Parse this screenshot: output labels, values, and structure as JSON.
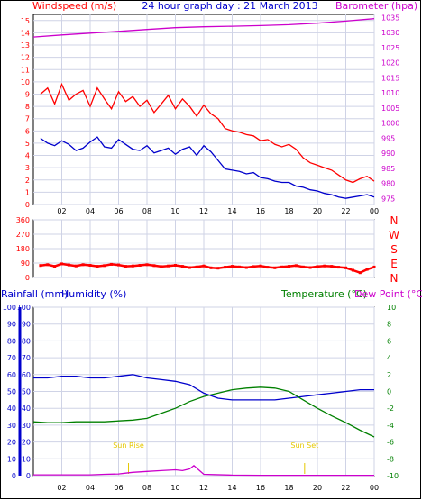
{
  "colors": {
    "wind": "#ff0000",
    "gust": "#ff0000",
    "avg_wind": "#0000cc",
    "barometer": "#cc00cc",
    "direction": "#ff0000",
    "rainfall": "#0000cc",
    "humidity": "#0000cc",
    "temperature": "#008000",
    "dew_point": "#cc00cc",
    "rain_axis": "#0000cc",
    "humidity_axis": "#0000cc",
    "temp_axis": "#008000",
    "sun": "#e6c800",
    "grid": "#cfd3e6",
    "axis_text": "#000000"
  },
  "chart_data": [
    {
      "type": "line",
      "title": "24 hour graph day : 21 March 2013",
      "left_label": "Windspeed (m/s)",
      "right_label": "Barometer (hpa)",
      "x_ticks": [
        "02",
        "04",
        "06",
        "08",
        "10",
        "12",
        "14",
        "16",
        "18",
        "20",
        "22",
        "00"
      ],
      "y_left_ticks": [
        "0",
        "1",
        "2",
        "3",
        "4",
        "5",
        "6",
        "7",
        "8",
        "9",
        "10",
        "11",
        "12",
        "13",
        "14",
        "15"
      ],
      "y_right_ticks": [
        "975",
        "980",
        "985",
        "990",
        "995",
        "1000",
        "1005",
        "1010",
        "1015",
        "1020",
        "1025",
        "1030",
        "1035"
      ],
      "ylim_left": [
        0,
        15.5
      ],
      "ylim_right": [
        973,
        1036
      ],
      "series": [
        {
          "role": "gust",
          "axis": "left",
          "x": [
            0.5,
            1.0,
            1.5,
            2.0,
            2.5,
            3.0,
            3.5,
            4.0,
            4.5,
            5.0,
            5.5,
            6.0,
            6.5,
            7.0,
            7.5,
            8.0,
            8.5,
            9.0,
            9.5,
            10.0,
            10.5,
            11.0,
            11.5,
            12.0,
            12.5,
            13.0,
            13.5,
            14.0,
            14.5,
            15.0,
            15.5,
            16.0,
            16.5,
            17.0,
            17.5,
            18.0,
            18.5,
            19.0,
            19.5,
            20.0,
            20.5,
            21.0,
            21.5,
            22.0,
            22.5,
            23.0,
            23.5,
            24.0
          ],
          "values": [
            9.0,
            9.5,
            8.2,
            9.8,
            8.5,
            9.0,
            9.3,
            8.0,
            9.5,
            8.6,
            7.8,
            9.2,
            8.4,
            8.8,
            8.0,
            8.5,
            7.5,
            8.2,
            8.9,
            7.8,
            8.6,
            8.0,
            7.2,
            8.1,
            7.4,
            7.0,
            6.2,
            6.0,
            5.9,
            5.7,
            5.6,
            5.2,
            5.3,
            4.9,
            4.7,
            4.9,
            4.5,
            3.8,
            3.4,
            3.2,
            3.0,
            2.8,
            2.4,
            2.0,
            1.8,
            2.1,
            2.3,
            1.9
          ]
        },
        {
          "role": "average",
          "axis": "left",
          "x": [
            0.5,
            1.0,
            1.5,
            2.0,
            2.5,
            3.0,
            3.5,
            4.0,
            4.5,
            5.0,
            5.5,
            6.0,
            6.5,
            7.0,
            7.5,
            8.0,
            8.5,
            9.0,
            9.5,
            10.0,
            10.5,
            11.0,
            11.5,
            12.0,
            12.5,
            13.0,
            13.5,
            14.0,
            14.5,
            15.0,
            15.5,
            16.0,
            16.5,
            17.0,
            17.5,
            18.0,
            18.5,
            19.0,
            19.5,
            20.0,
            20.5,
            21.0,
            21.5,
            22.0,
            22.5,
            23.0,
            23.5,
            24.0
          ],
          "values": [
            5.4,
            5.0,
            4.8,
            5.2,
            4.9,
            4.4,
            4.6,
            5.1,
            5.5,
            4.7,
            4.6,
            5.3,
            4.9,
            4.5,
            4.4,
            4.8,
            4.2,
            4.4,
            4.6,
            4.1,
            4.5,
            4.7,
            4.0,
            4.8,
            4.3,
            3.6,
            2.9,
            2.8,
            2.7,
            2.5,
            2.6,
            2.2,
            2.1,
            1.9,
            1.8,
            1.8,
            1.5,
            1.4,
            1.2,
            1.1,
            0.9,
            0.8,
            0.6,
            0.5,
            0.6,
            0.7,
            0.8,
            0.6
          ]
        },
        {
          "role": "barometer",
          "axis": "right",
          "x": [
            0,
            2,
            4,
            6,
            8,
            10,
            12,
            14,
            16,
            18,
            20,
            22,
            24
          ],
          "values": [
            1028.5,
            1029.2,
            1029.8,
            1030.4,
            1031.0,
            1031.6,
            1031.9,
            1032.1,
            1032.3,
            1032.6,
            1033.1,
            1033.8,
            1034.6
          ]
        }
      ]
    },
    {
      "type": "scatter",
      "right_label_letters": [
        "N",
        "W",
        "S",
        "E",
        "N"
      ],
      "y_ticks": [
        "360",
        "270",
        "180",
        "90",
        "0"
      ],
      "ylim": [
        0,
        360
      ],
      "x": [
        0.5,
        1.0,
        1.5,
        2.0,
        2.5,
        3.0,
        3.5,
        4.0,
        4.5,
        5.0,
        5.5,
        6.0,
        6.5,
        7.0,
        7.5,
        8.0,
        8.5,
        9.0,
        9.5,
        10.0,
        10.5,
        11.0,
        11.5,
        12.0,
        12.5,
        13.0,
        13.5,
        14.0,
        14.5,
        15.0,
        15.5,
        16.0,
        16.5,
        17.0,
        17.5,
        18.0,
        18.5,
        19.0,
        19.5,
        20.0,
        20.5,
        21.0,
        21.5,
        22.0,
        22.5,
        23.0,
        23.5,
        24.0
      ],
      "values": [
        75,
        80,
        70,
        85,
        78,
        72,
        80,
        76,
        70,
        74,
        82,
        78,
        70,
        72,
        76,
        80,
        74,
        68,
        72,
        76,
        70,
        62,
        66,
        72,
        60,
        58,
        64,
        70,
        66,
        62,
        68,
        72,
        64,
        60,
        66,
        70,
        74,
        66,
        62,
        68,
        72,
        70,
        64,
        60,
        45,
        30,
        50,
        65
      ]
    },
    {
      "type": "line",
      "left_labels": [
        "Rainfall (mm)",
        "Humidity (%)"
      ],
      "right_labels": [
        "Temperature (°C)",
        "Dew Point (°C)"
      ],
      "x_ticks": [
        "02",
        "04",
        "06",
        "08",
        "10",
        "12",
        "14",
        "16",
        "18",
        "20",
        "22",
        "00"
      ],
      "y_rain_ticks": [
        "0",
        "10",
        "20",
        "30",
        "40",
        "50",
        "60",
        "70",
        "80",
        "90",
        "100"
      ],
      "y_humidity_ticks": [
        "0",
        "10",
        "20",
        "30",
        "40",
        "50",
        "60",
        "70",
        "80",
        "90",
        "100"
      ],
      "y_temp_ticks": [
        "-10",
        "-8",
        "-6",
        "-4",
        "-2",
        "0",
        "2",
        "4",
        "6",
        "8",
        "10"
      ],
      "ylim_left": [
        0,
        100
      ],
      "ylim_right": [
        -10,
        10
      ],
      "annotations": [
        {
          "label": "Sun Rise",
          "x": 6.7
        },
        {
          "label": "Sun Set",
          "x": 19.1
        }
      ],
      "series": [
        {
          "role": "humidity",
          "axis": "left",
          "x": [
            0,
            1,
            2,
            3,
            4,
            5,
            6,
            7,
            8,
            9,
            10,
            11,
            12,
            13,
            14,
            15,
            16,
            17,
            18,
            19,
            20,
            21,
            22,
            23,
            24
          ],
          "values": [
            58,
            58,
            59,
            59,
            58,
            58,
            59,
            60,
            58,
            57,
            56,
            54,
            49,
            46,
            45,
            45,
            45,
            45,
            46,
            47,
            48,
            49,
            50,
            51,
            51
          ]
        },
        {
          "role": "temperature",
          "axis": "right",
          "x": [
            0,
            1,
            2,
            3,
            4,
            5,
            6,
            7,
            8,
            9,
            10,
            11,
            12,
            13,
            14,
            15,
            16,
            17,
            18,
            19,
            20,
            21,
            22,
            23,
            24
          ],
          "values": [
            -3.6,
            -3.7,
            -3.7,
            -3.6,
            -3.6,
            -3.6,
            -3.5,
            -3.4,
            -3.2,
            -2.6,
            -2.0,
            -1.2,
            -0.6,
            -0.2,
            0.2,
            0.4,
            0.5,
            0.4,
            0.0,
            -1.0,
            -2.0,
            -2.9,
            -3.7,
            -4.6,
            -5.4
          ]
        },
        {
          "role": "rainfall",
          "axis": "left",
          "x": [
            0,
            2,
            4,
            5,
            6,
            6.5,
            7,
            8,
            9,
            10,
            10.5,
            11,
            11.3,
            11.7,
            12,
            14,
            16,
            18,
            20,
            22,
            24
          ],
          "values": [
            0.5,
            0.5,
            0.5,
            0.8,
            1.0,
            1.5,
            2.0,
            2.5,
            3.0,
            3.5,
            3.0,
            4.0,
            6.0,
            3.0,
            0.8,
            0.3,
            0.2,
            0.2,
            0.2,
            0.2,
            0.2
          ]
        }
      ]
    }
  ]
}
